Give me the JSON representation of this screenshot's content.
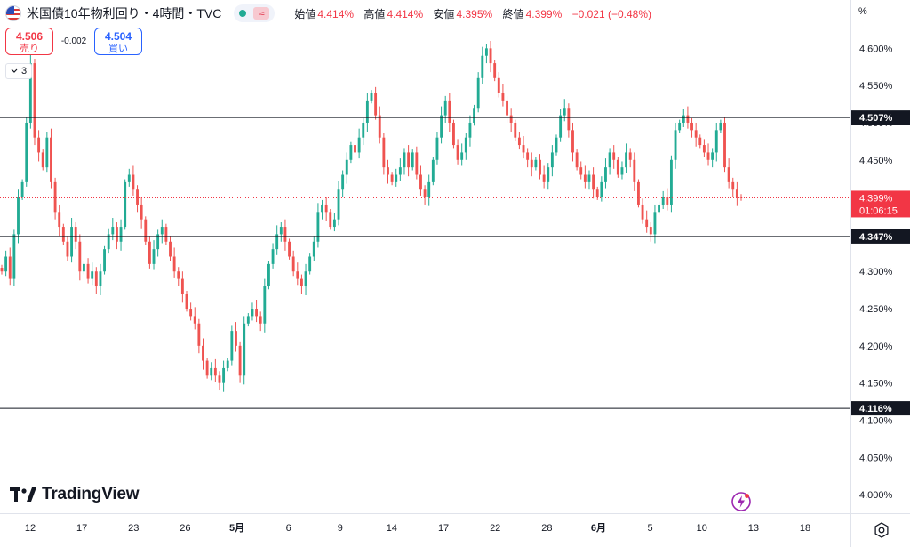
{
  "header": {
    "flag_icon": "us-flag-icon",
    "symbol_title": "米国債10年物利回り・4時間・TVC",
    "status_icon": "market-open-dot-icon",
    "wave_icon": "approx-wave-icon",
    "ohlc": {
      "open_label": "始値",
      "open": "4.414%",
      "high_label": "高値",
      "high": "4.414%",
      "low_label": "安値",
      "low": "4.395%",
      "close_label": "終値",
      "close": "4.399%",
      "change": "−0.021 (−0.48%)"
    }
  },
  "bid_ask": {
    "sell_price": "4.506",
    "sell_label": "売り",
    "spread": "-0.002",
    "buy_price": "4.504",
    "buy_label": "買い"
  },
  "indicators_toggle": {
    "icon": "chevron-down-icon",
    "count": "3"
  },
  "price_axis_unit": "%",
  "branding": {
    "logo_icon": "tradingview-logo-icon",
    "name": "TradingView"
  },
  "colors": {
    "up": "#22ab94",
    "down": "#ef5350",
    "line": "#131722",
    "current": "#f23645"
  },
  "chart_data": {
    "type": "candlestick",
    "ylim": [
      3.975,
      4.665
    ],
    "y_ticks": [
      "4.600%",
      "4.550%",
      "4.500%",
      "4.450%",
      "4.400%",
      "4.350%",
      "4.300%",
      "4.250%",
      "4.200%",
      "4.150%",
      "4.100%",
      "4.050%",
      "4.000%"
    ],
    "x_ticks": [
      "12",
      "17",
      "23",
      "26",
      "5月",
      "6",
      "9",
      "14",
      "17",
      "22",
      "28",
      "6月",
      "5",
      "10",
      "13",
      "18"
    ],
    "horizontal_lines": [
      {
        "value": 4.507,
        "label": "4.507%"
      },
      {
        "value": 4.347,
        "label": "4.347%"
      },
      {
        "value": 4.116,
        "label": "4.116%"
      }
    ],
    "current": {
      "value": 4.399,
      "label": "4.399%",
      "countdown": "01:06:15"
    },
    "closes": [
      4.3,
      4.32,
      4.29,
      4.35,
      4.4,
      4.42,
      4.5,
      4.58,
      4.48,
      4.46,
      4.44,
      4.48,
      4.42,
      4.38,
      4.36,
      4.34,
      4.32,
      4.36,
      4.34,
      4.3,
      4.31,
      4.29,
      4.3,
      4.28,
      4.3,
      4.33,
      4.35,
      4.36,
      4.34,
      4.36,
      4.42,
      4.43,
      4.41,
      4.39,
      4.37,
      4.34,
      4.31,
      4.33,
      4.35,
      4.36,
      4.34,
      4.32,
      4.3,
      4.29,
      4.27,
      4.25,
      4.24,
      4.23,
      4.2,
      4.18,
      4.16,
      4.17,
      4.16,
      4.15,
      4.17,
      4.18,
      4.22,
      4.2,
      4.16,
      4.23,
      4.24,
      4.25,
      4.24,
      4.23,
      4.28,
      4.31,
      4.33,
      4.35,
      4.36,
      4.34,
      4.32,
      4.3,
      4.29,
      4.28,
      4.3,
      4.32,
      4.34,
      4.38,
      4.39,
      4.38,
      4.36,
      4.37,
      4.41,
      4.43,
      4.45,
      4.47,
      4.46,
      4.48,
      4.5,
      4.53,
      4.54,
      4.51,
      4.48,
      4.44,
      4.43,
      4.42,
      4.43,
      4.44,
      4.46,
      4.44,
      4.46,
      4.43,
      4.41,
      4.4,
      4.42,
      4.45,
      4.48,
      4.51,
      4.53,
      4.5,
      4.47,
      4.45,
      4.46,
      4.48,
      4.5,
      4.52,
      4.56,
      4.59,
      4.6,
      4.58,
      4.56,
      4.54,
      4.53,
      4.51,
      4.5,
      4.48,
      4.47,
      4.46,
      4.45,
      4.44,
      4.45,
      4.43,
      4.42,
      4.44,
      4.46,
      4.48,
      4.51,
      4.52,
      4.49,
      4.46,
      4.44,
      4.43,
      4.42,
      4.43,
      4.41,
      4.4,
      4.42,
      4.44,
      4.46,
      4.45,
      4.43,
      4.44,
      4.46,
      4.45,
      4.42,
      4.39,
      4.37,
      4.36,
      4.35,
      4.38,
      4.39,
      4.4,
      4.39,
      4.45,
      4.49,
      4.5,
      4.51,
      4.5,
      4.49,
      4.48,
      4.47,
      4.46,
      4.45,
      4.46,
      4.49,
      4.5,
      4.44,
      4.42,
      4.41,
      4.4,
      4.399
    ]
  }
}
